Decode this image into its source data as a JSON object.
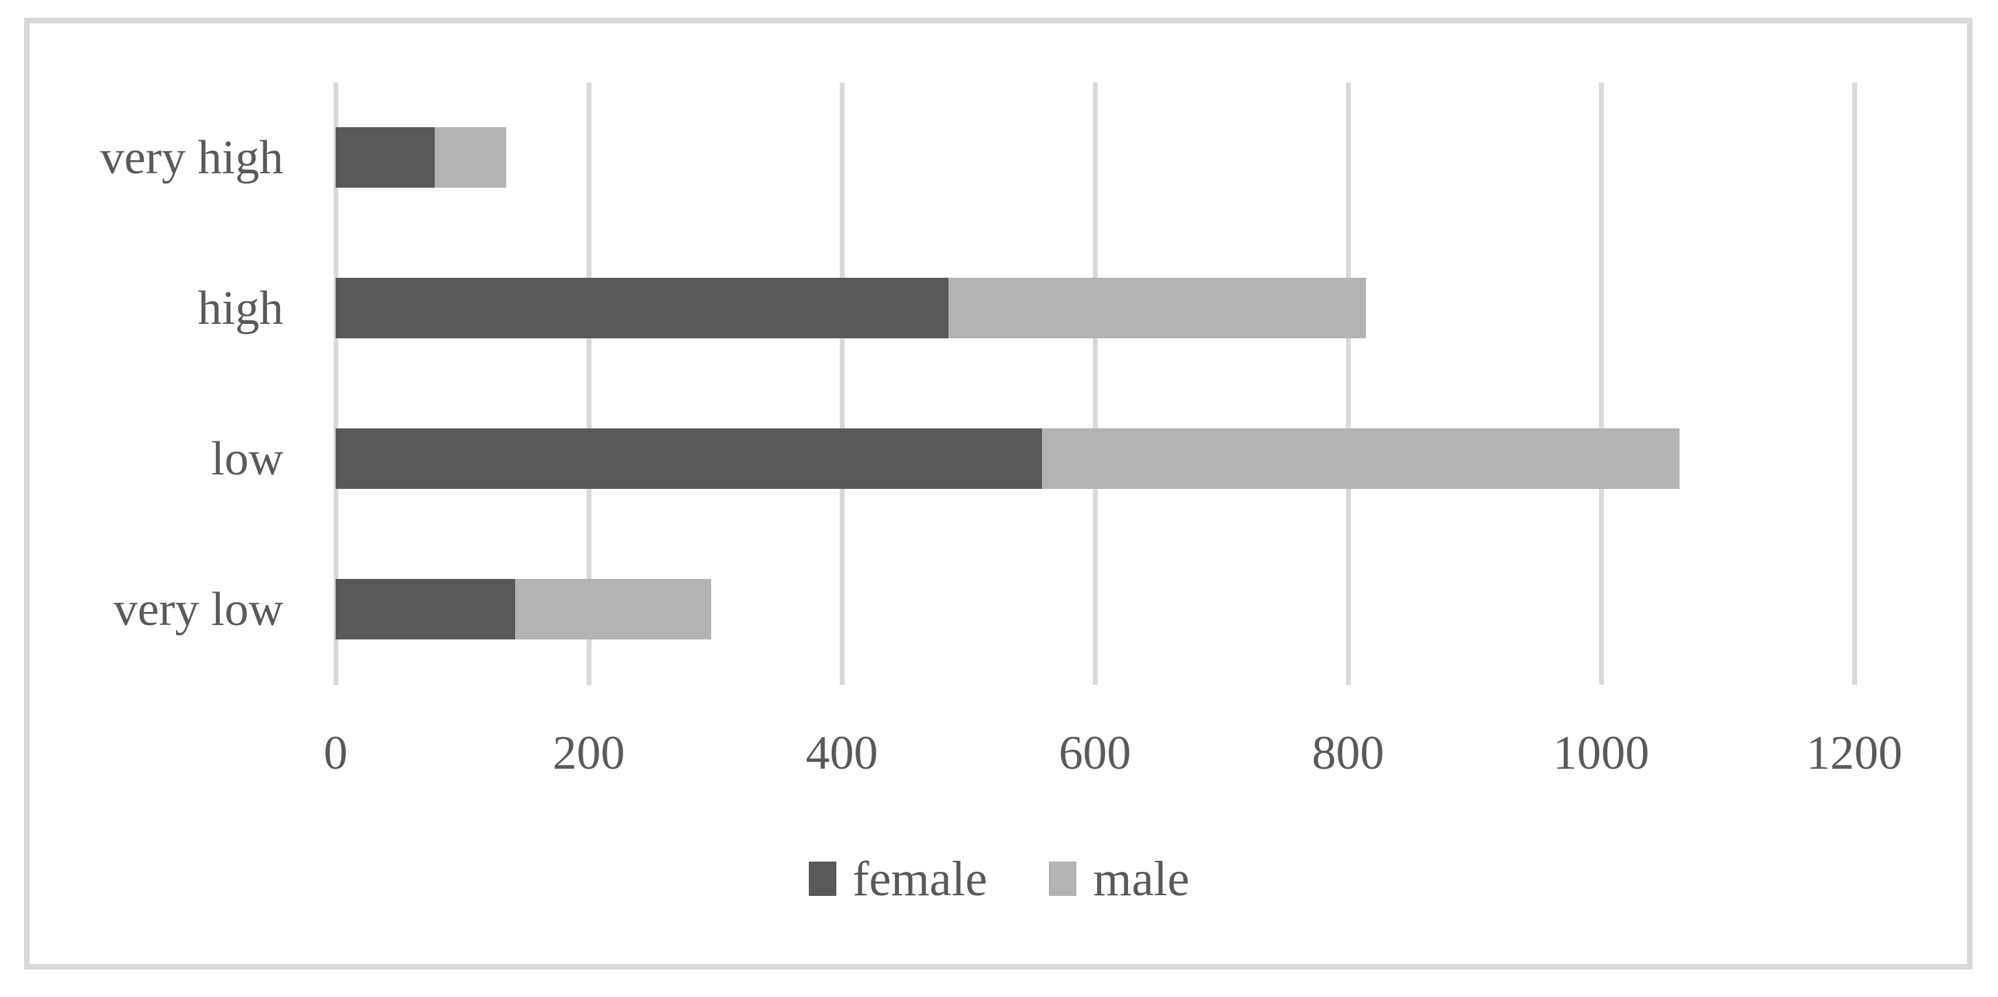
{
  "chart_data": {
    "type": "bar",
    "orientation": "horizontal",
    "stacked": true,
    "title": "",
    "xlabel": "",
    "ylabel": "",
    "categories": [
      "very high",
      "high",
      "low",
      "very low"
    ],
    "series": [
      {
        "name": "female",
        "color": "#595959",
        "values": [
          78,
          484,
          558,
          142
        ]
      },
      {
        "name": "male",
        "color": "#b3b3b3",
        "values": [
          57,
          330,
          504,
          155
        ]
      }
    ],
    "stacked_totals": [
      135,
      814,
      1062,
      297
    ],
    "xlim": [
      0,
      1200
    ],
    "xticks": [
      0,
      200,
      400,
      600,
      800,
      1000,
      1200
    ],
    "grid": "vertical-only",
    "legend_position": "bottom-center"
  },
  "colors": {
    "female_bar": "#595959",
    "male_bar": "#b3b3b3",
    "gridline": "#d9d9d9",
    "frame_border": "#d9d9d9",
    "text": "#595959",
    "background": "#ffffff"
  }
}
